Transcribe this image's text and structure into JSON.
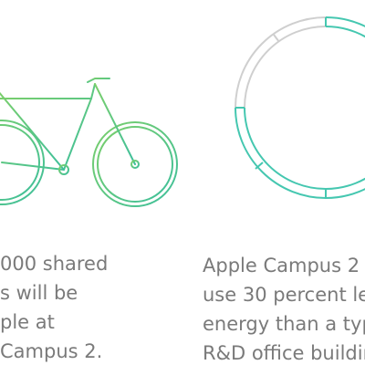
{
  "left_text": {
    "lines": [
      "000 shared",
      "s will be",
      "ple at",
      "Campus 2."
    ]
  },
  "right_text": {
    "lines": [
      "Apple Campus 2",
      "use 30 percent le",
      "energy than a typ",
      "R&D office buildin"
    ]
  }
}
